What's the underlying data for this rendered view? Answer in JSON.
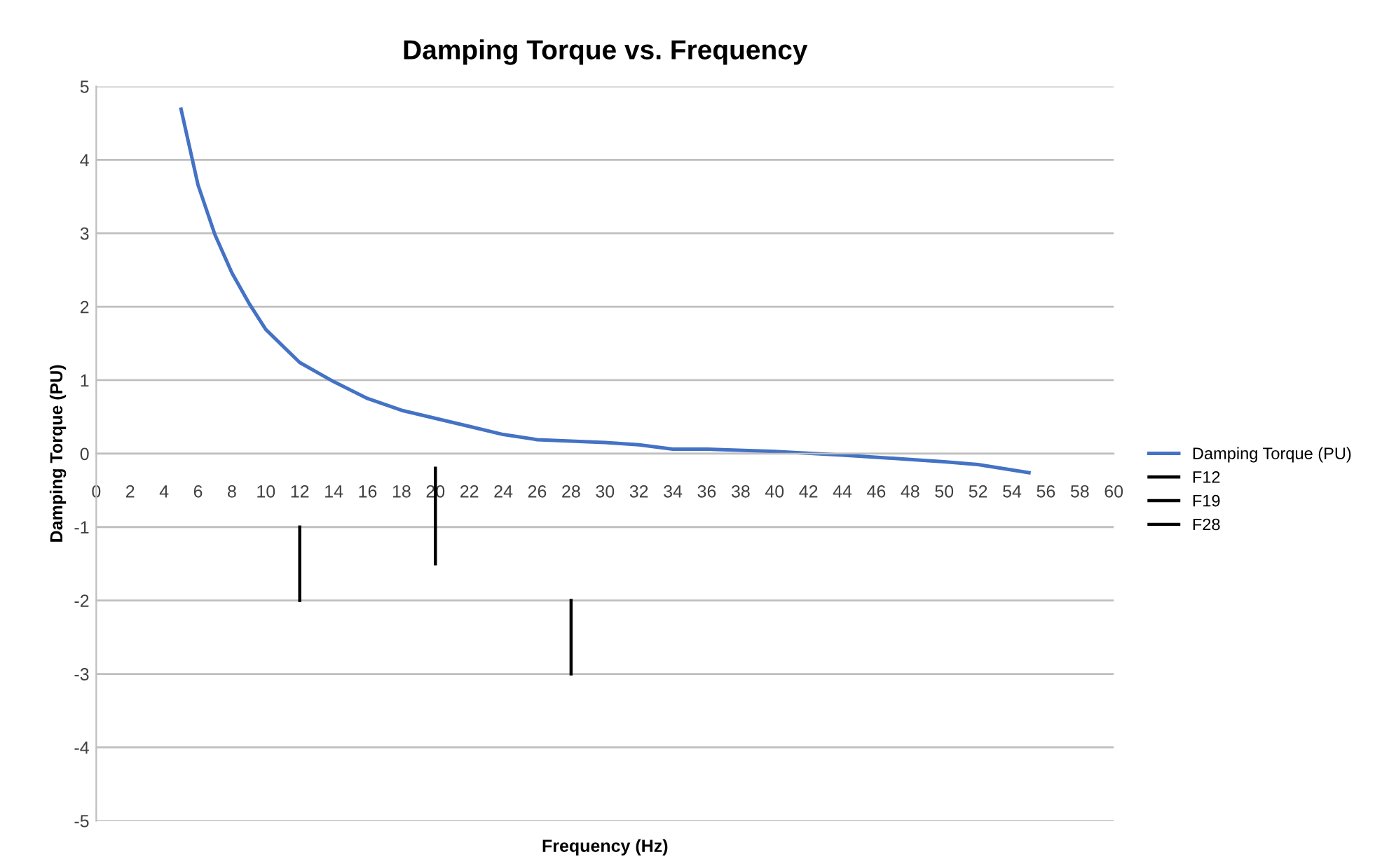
{
  "chart_data": {
    "type": "line",
    "title": "Damping Torque vs. Frequency",
    "xlabel": "Frequency (Hz)",
    "ylabel": "Damping Torque (PU)",
    "series": [
      {
        "name": "Damping Torque (PU)",
        "color": "#4472c4",
        "x": [
          5,
          6,
          7,
          8,
          9,
          10,
          12,
          14,
          16,
          18,
          20,
          22,
          24,
          26,
          28,
          30,
          32,
          34,
          36,
          40,
          44,
          48,
          50,
          52,
          55
        ],
        "values": [
          4.69,
          3.66,
          2.98,
          2.46,
          2.05,
          1.69,
          1.24,
          0.98,
          0.75,
          0.59,
          0.48,
          0.37,
          0.26,
          0.19,
          0.17,
          0.15,
          0.12,
          0.06,
          0.06,
          0.03,
          -0.02,
          -0.08,
          -0.11,
          -0.15,
          -0.26
        ]
      },
      {
        "name": "F12",
        "color": "#000000",
        "x": [
          12,
          12
        ],
        "values": [
          -1,
          -2
        ]
      },
      {
        "name": "F19",
        "color": "#000000",
        "x": [
          20,
          20
        ],
        "values": [
          -0.2,
          -1.5
        ]
      },
      {
        "name": "F28",
        "color": "#000000",
        "x": [
          28,
          28
        ],
        "values": [
          -2,
          -3
        ]
      }
    ],
    "xlim": [
      0,
      60
    ],
    "xticks": [
      0,
      2,
      4,
      6,
      8,
      10,
      12,
      14,
      16,
      18,
      20,
      22,
      24,
      26,
      28,
      30,
      32,
      34,
      36,
      38,
      40,
      42,
      44,
      46,
      48,
      50,
      52,
      54,
      56,
      58,
      60
    ],
    "ylim": [
      -5,
      5
    ],
    "yticks": [
      -5,
      -4,
      -3,
      -2,
      -1,
      0,
      1,
      2,
      3,
      4,
      5
    ],
    "grid": "y",
    "legend": "right",
    "marker": "none",
    "line_style": "solid"
  }
}
